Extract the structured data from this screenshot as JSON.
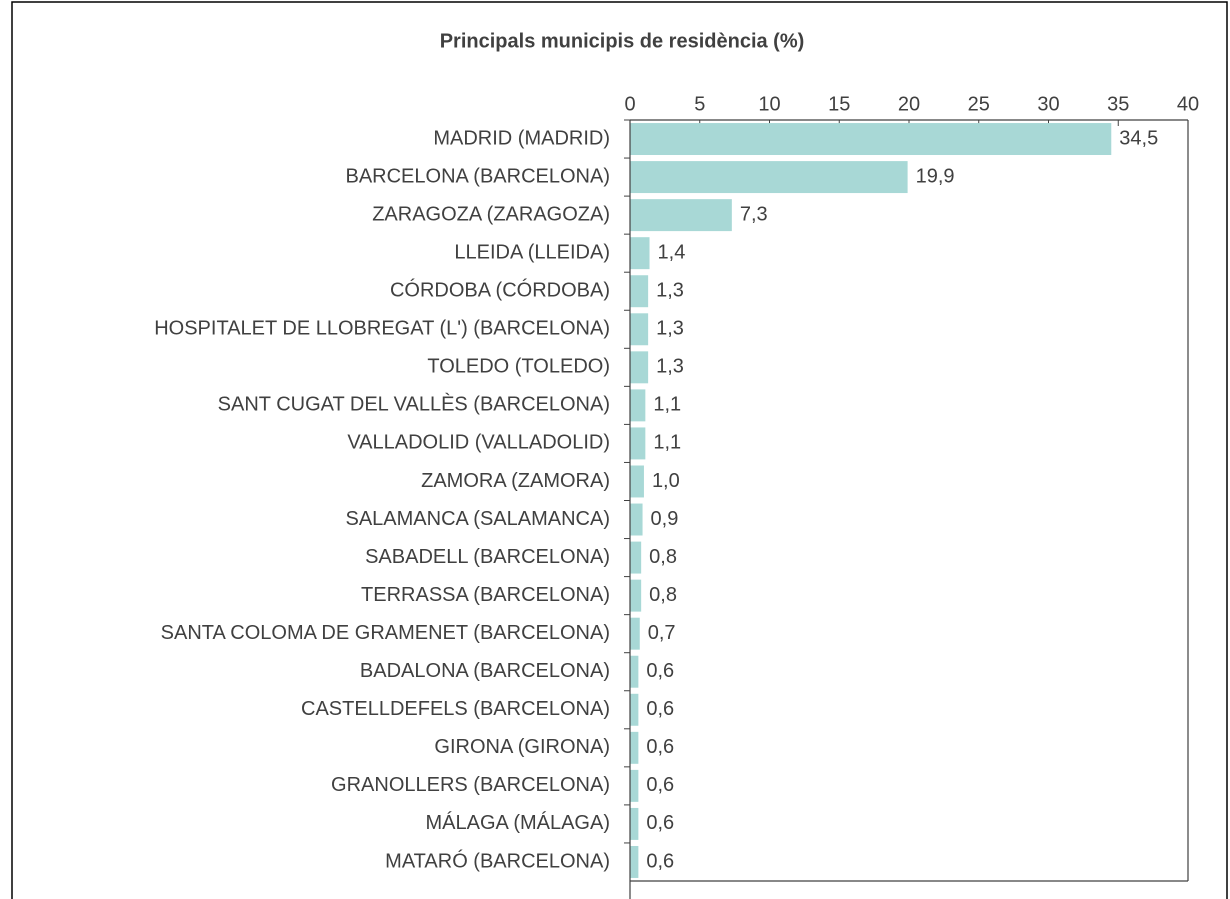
{
  "chart_data": {
    "type": "bar",
    "orientation": "horizontal",
    "title": "Principals municipis de residència (%)",
    "categories": [
      "MADRID (MADRID)",
      "BARCELONA (BARCELONA)",
      "ZARAGOZA (ZARAGOZA)",
      "LLEIDA (LLEIDA)",
      "CÓRDOBA (CÓRDOBA)",
      "HOSPITALET DE LLOBREGAT (L') (BARCELONA)",
      "TOLEDO (TOLEDO)",
      "SANT CUGAT DEL VALLÈS (BARCELONA)",
      "VALLADOLID (VALLADOLID)",
      "ZAMORA (ZAMORA)",
      "SALAMANCA (SALAMANCA)",
      "SABADELL (BARCELONA)",
      "TERRASSA (BARCELONA)",
      "SANTA COLOMA DE GRAMENET (BARCELONA)",
      "BADALONA (BARCELONA)",
      "CASTELLDEFELS (BARCELONA)",
      "GIRONA (GIRONA)",
      "GRANOLLERS (BARCELONA)",
      "MÁLAGA (MÁLAGA)",
      "MATARÓ (BARCELONA)"
    ],
    "values": [
      34.5,
      19.9,
      7.3,
      1.4,
      1.3,
      1.3,
      1.3,
      1.1,
      1.1,
      1.0,
      0.9,
      0.8,
      0.8,
      0.7,
      0.6,
      0.6,
      0.6,
      0.6,
      0.6,
      0.6
    ],
    "value_labels": [
      "34,5",
      "19,9",
      "7,3",
      "1,4",
      "1,3",
      "1,3",
      "1,3",
      "1,1",
      "1,1",
      "1,0",
      "0,9",
      "0,8",
      "0,8",
      "0,7",
      "0,6",
      "0,6",
      "0,6",
      "0,6",
      "0,6",
      "0,6"
    ],
    "color": "#a8d8d6",
    "xlim": [
      0,
      40
    ],
    "xticks": [
      0,
      5,
      10,
      15,
      20,
      25,
      30,
      35,
      40
    ],
    "grid": false
  }
}
